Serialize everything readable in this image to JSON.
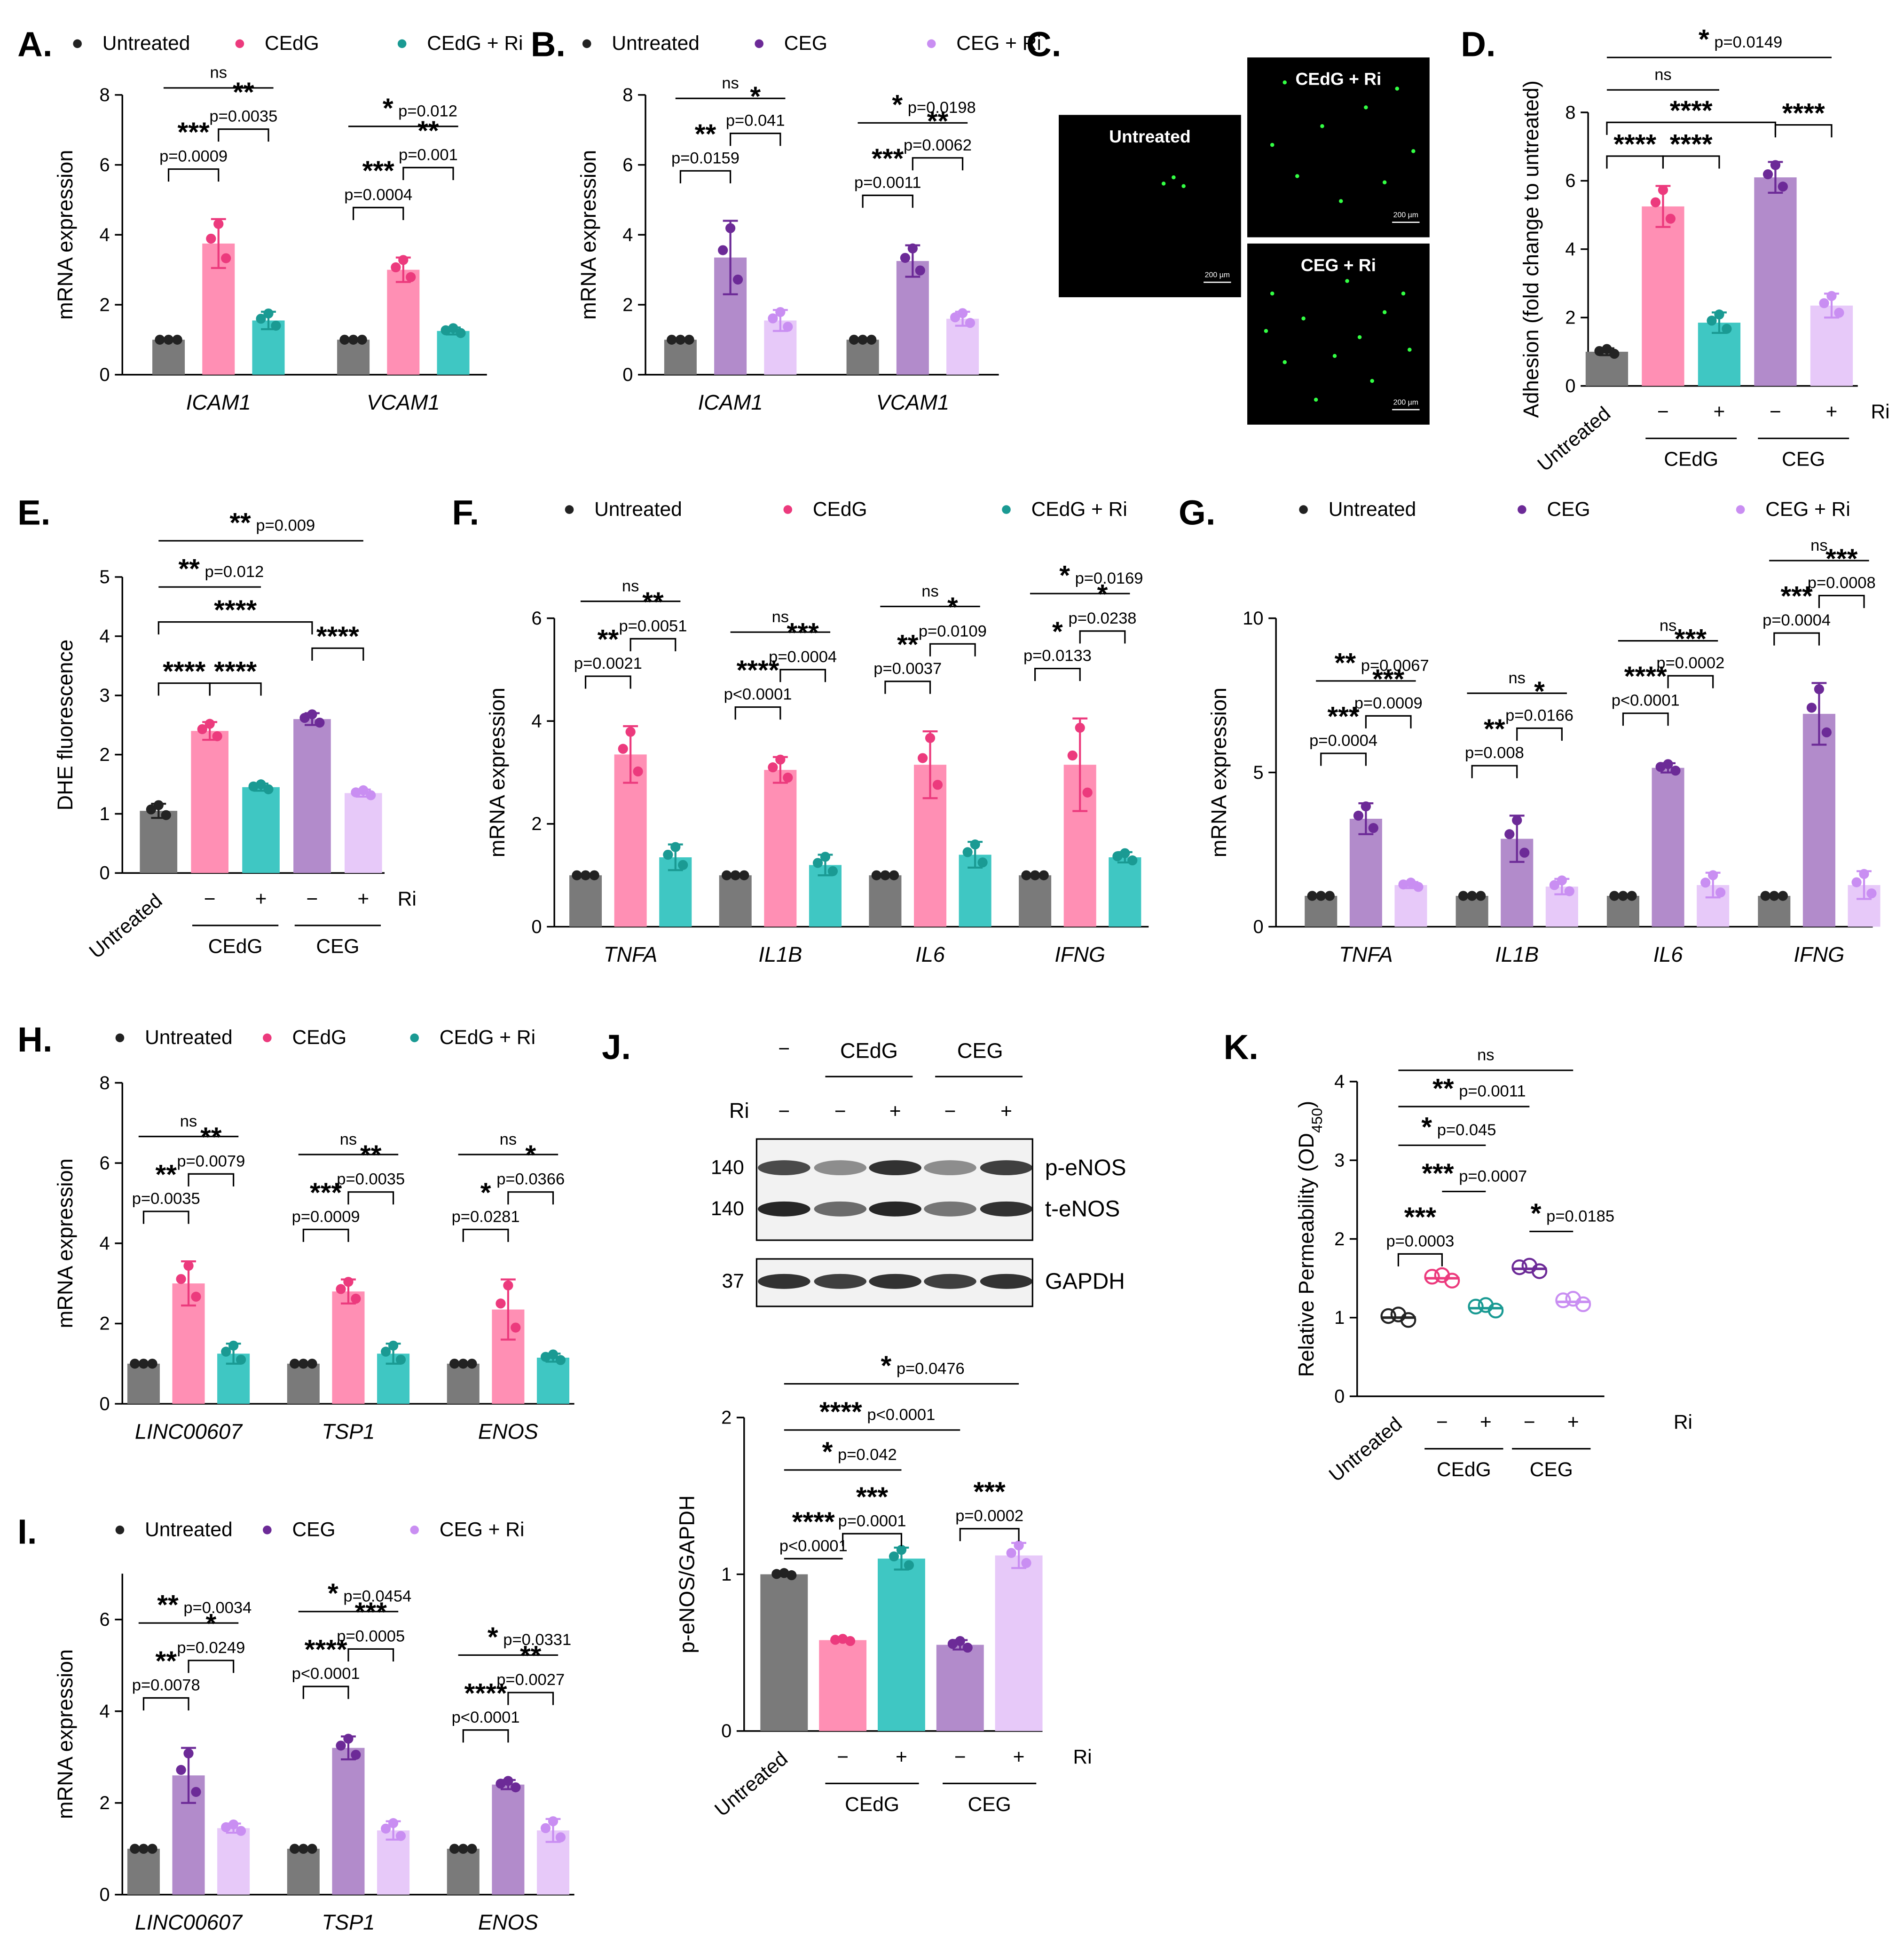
{
  "colors": {
    "untreated": "#7a7a7a",
    "cedg": "#ff8fb4",
    "cedg_dot": "#ec3a7d",
    "cedg_ri": "#3fc7c3",
    "cedg_ri_dot": "#1a9a93",
    "ceg": "#b28bcb",
    "ceg_dot": "#6c2a97",
    "ceg_ri": "#e7c9f9",
    "ceg_ri_dot": "#c98ef2",
    "untreated_dot": "#222222"
  },
  "chart_data": [
    {
      "id": "A",
      "panel_label": "A.",
      "type": "bar",
      "legend": [
        "Untreated",
        "CEdG",
        "CEdG + Ri"
      ],
      "ylabel": "mRNA expression",
      "ylim": [
        0,
        8
      ],
      "yticks": [
        "0",
        "2",
        "4",
        "6",
        "8"
      ],
      "categories": [
        "ICAM1",
        "VCAM1"
      ],
      "series": [
        {
          "name": "Untreated",
          "values": [
            1.0,
            1.0
          ],
          "err": [
            0,
            0
          ]
        },
        {
          "name": "CEdG",
          "values": [
            3.75,
            3.0
          ],
          "err": [
            0.7,
            0.35
          ]
        },
        {
          "name": "CEdG + Ri",
          "values": [
            1.55,
            1.25
          ],
          "err": [
            0.25,
            0.1
          ]
        }
      ],
      "annotations": [
        {
          "stars": "***",
          "p": "p=0.0009"
        },
        {
          "stars": "**",
          "p": "p=0.0035"
        },
        {
          "stars": "ns",
          "p": ""
        },
        {
          "stars": "***",
          "p": "p=0.0004"
        },
        {
          "stars": "**",
          "p": "p=0.001"
        },
        {
          "stars": "*",
          "p": "p=0.012"
        }
      ]
    },
    {
      "id": "B",
      "panel_label": "B.",
      "type": "bar",
      "legend": [
        "Untreated",
        "CEG",
        "CEG + Ri"
      ],
      "ylabel": "mRNA expression",
      "ylim": [
        0,
        8
      ],
      "yticks": [
        "0",
        "2",
        "4",
        "6",
        "8"
      ],
      "categories": [
        "ICAM1",
        "VCAM1"
      ],
      "series": [
        {
          "name": "Untreated",
          "values": [
            1.0,
            1.0
          ],
          "err": [
            0,
            0
          ]
        },
        {
          "name": "CEG",
          "values": [
            3.35,
            3.25
          ],
          "err": [
            1.05,
            0.45
          ]
        },
        {
          "name": "CEG + Ri",
          "values": [
            1.55,
            1.6
          ],
          "err": [
            0.3,
            0.2
          ]
        }
      ],
      "annotations": [
        {
          "stars": "**",
          "p": "p=0.0159"
        },
        {
          "stars": "*",
          "p": "p=0.041"
        },
        {
          "stars": "ns",
          "p": ""
        },
        {
          "stars": "***",
          "p": "p=0.0011"
        },
        {
          "stars": "**",
          "p": "p=0.0062"
        },
        {
          "stars": "*",
          "p": "p=0.0198"
        }
      ]
    },
    {
      "id": "C",
      "panel_label": "C.",
      "type": "image",
      "images": [
        {
          "label": "Untreated",
          "scale": ""
        },
        {
          "label": "CEdG + Ri",
          "scale": "200 µm"
        },
        {
          "label": "CEG + Ri",
          "scale": "200 µm"
        }
      ],
      "scale_first": "200 µm"
    },
    {
      "id": "D",
      "panel_label": "D.",
      "type": "bar",
      "ylabel": "Adhesion (fold change to untreated)",
      "ylim": [
        0,
        8
      ],
      "yticks": [
        "0",
        "2",
        "4",
        "6",
        "8"
      ],
      "categories": [
        "Untreated",
        "CEdG −",
        "CEdG +",
        "CEG −",
        "CEG +"
      ],
      "values": [
        1.0,
        5.25,
        1.85,
        6.1,
        2.35
      ],
      "err": [
        0.1,
        0.6,
        0.3,
        0.45,
        0.35
      ],
      "x_minus": "−",
      "x_plus": "+",
      "ri_label": "Ri",
      "group_labels": [
        "CEdG",
        "CEG"
      ],
      "untreated_label": "Untreated",
      "annotations": [
        {
          "stars": "****",
          "p": ""
        },
        {
          "stars": "****",
          "p": ""
        },
        {
          "stars": "****",
          "p": ""
        },
        {
          "stars": "****",
          "p": ""
        },
        {
          "stars": "ns",
          "p": ""
        },
        {
          "stars": "*",
          "p": "p=0.0149"
        }
      ]
    },
    {
      "id": "E",
      "panel_label": "E.",
      "type": "bar",
      "ylabel": "DHE fluorescence",
      "ylim": [
        0,
        5
      ],
      "yticks": [
        "0",
        "1",
        "2",
        "3",
        "4",
        "5"
      ],
      "categories": [
        "Untreated",
        "CEdG −",
        "CEdG +",
        "CEG −",
        "CEG +"
      ],
      "values": [
        1.05,
        2.4,
        1.45,
        2.6,
        1.35
      ],
      "err": [
        0.12,
        0.15,
        0.06,
        0.1,
        0.06
      ],
      "x_minus": "−",
      "x_plus": "+",
      "ri_label": "Ri",
      "group_labels": [
        "CEdG",
        "CEG"
      ],
      "untreated_label": "Untreated",
      "annotations": [
        {
          "stars": "****",
          "p": ""
        },
        {
          "stars": "****",
          "p": ""
        },
        {
          "stars": "****",
          "p": ""
        },
        {
          "stars": "****",
          "p": ""
        },
        {
          "stars": "**",
          "p": "p=0.012"
        },
        {
          "stars": "**",
          "p": "p=0.009"
        }
      ]
    },
    {
      "id": "F",
      "panel_label": "F.",
      "type": "bar",
      "legend": [
        "Untreated",
        "CEdG",
        "CEdG + Ri"
      ],
      "ylabel": "mRNA expression",
      "ylim": [
        0,
        6
      ],
      "yticks": [
        "0",
        "2",
        "4",
        "6"
      ],
      "categories": [
        "TNFA",
        "IL1B",
        "IL6",
        "IFNG"
      ],
      "series": [
        {
          "name": "Untreated",
          "values": [
            1.0,
            1.0,
            1.0,
            1.0
          ],
          "err": [
            0,
            0,
            0,
            0
          ]
        },
        {
          "name": "CEdG",
          "values": [
            3.35,
            3.05,
            3.15,
            3.15
          ],
          "err": [
            0.55,
            0.25,
            0.65,
            0.9
          ]
        },
        {
          "name": "CEdG + Ri",
          "values": [
            1.35,
            1.2,
            1.4,
            1.35
          ],
          "err": [
            0.25,
            0.2,
            0.25,
            0.1
          ]
        }
      ],
      "annotations": [
        {
          "stars": "**",
          "p": "p=0.0021"
        },
        {
          "stars": "**",
          "p": "p=0.0051"
        },
        {
          "stars": "ns",
          "p": ""
        },
        {
          "stars": "****",
          "p": "p<0.0001"
        },
        {
          "stars": "***",
          "p": "p=0.0004"
        },
        {
          "stars": "ns",
          "p": ""
        },
        {
          "stars": "**",
          "p": "p=0.0037"
        },
        {
          "stars": "*",
          "p": "p=0.0109"
        },
        {
          "stars": "ns",
          "p": ""
        },
        {
          "stars": "*",
          "p": "p=0.0133"
        },
        {
          "stars": "*",
          "p": "p=0.0238"
        },
        {
          "stars": "*",
          "p": "p=0.0169"
        }
      ]
    },
    {
      "id": "G",
      "panel_label": "G.",
      "type": "bar",
      "legend": [
        "Untreated",
        "CEG",
        "CEG + Ri"
      ],
      "ylabel": "mRNA expression",
      "ylim": [
        0,
        10
      ],
      "yticks": [
        "0",
        "5",
        "10"
      ],
      "categories": [
        "TNFA",
        "IL1B",
        "IL6",
        "IFNG"
      ],
      "series": [
        {
          "name": "Untreated",
          "values": [
            1.0,
            1.0,
            1.0,
            1.0
          ],
          "err": [
            0,
            0,
            0,
            0
          ]
        },
        {
          "name": "CEG",
          "values": [
            3.5,
            2.85,
            5.15,
            6.9
          ],
          "err": [
            0.5,
            0.75,
            0.15,
            1.0
          ]
        },
        {
          "name": "CEG + Ri",
          "values": [
            1.35,
            1.3,
            1.35,
            1.35
          ],
          "err": [
            0.1,
            0.25,
            0.4,
            0.45
          ]
        }
      ],
      "annotations": [
        {
          "stars": "***",
          "p": "p=0.0004"
        },
        {
          "stars": "***",
          "p": "p=0.0009"
        },
        {
          "stars": "**",
          "p": "p=0.0067"
        },
        {
          "stars": "**",
          "p": "p=0.008"
        },
        {
          "stars": "*",
          "p": "p=0.0166"
        },
        {
          "stars": "ns",
          "p": ""
        },
        {
          "stars": "****",
          "p": "p<0.0001"
        },
        {
          "stars": "***",
          "p": "p=0.0002"
        },
        {
          "stars": "ns",
          "p": ""
        },
        {
          "stars": "***",
          "p": "p=0.0004"
        },
        {
          "stars": "***",
          "p": "p=0.0008"
        },
        {
          "stars": "ns",
          "p": ""
        }
      ]
    },
    {
      "id": "H",
      "panel_label": "H.",
      "type": "bar",
      "legend": [
        "Untreated",
        "CEdG",
        "CEdG + Ri"
      ],
      "ylabel": "mRNA expression",
      "ylim": [
        0,
        8
      ],
      "yticks": [
        "0",
        "2",
        "4",
        "6",
        "8"
      ],
      "categories": [
        "LINC00607",
        "TSP1",
        "ENOS"
      ],
      "series": [
        {
          "name": "Untreated",
          "values": [
            1.0,
            1.0,
            1.0
          ],
          "err": [
            0,
            0,
            0
          ]
        },
        {
          "name": "CEdG",
          "values": [
            3.0,
            2.8,
            2.35
          ],
          "err": [
            0.55,
            0.3,
            0.75
          ]
        },
        {
          "name": "CEdG + Ri",
          "values": [
            1.25,
            1.25,
            1.15
          ],
          "err": [
            0.25,
            0.25,
            0.1
          ]
        }
      ],
      "annotations": [
        {
          "stars": "**",
          "p": "p=0.0035"
        },
        {
          "stars": "**",
          "p": "p=0.0079"
        },
        {
          "stars": "ns",
          "p": ""
        },
        {
          "stars": "***",
          "p": "p=0.0009"
        },
        {
          "stars": "**",
          "p": "p=0.0035"
        },
        {
          "stars": "ns",
          "p": ""
        },
        {
          "stars": "*",
          "p": "p=0.0281"
        },
        {
          "stars": "*",
          "p": "p=0.0366"
        },
        {
          "stars": "ns",
          "p": ""
        }
      ]
    },
    {
      "id": "I",
      "panel_label": "I.",
      "type": "bar",
      "legend": [
        "Untreated",
        "CEG",
        "CEG + Ri"
      ],
      "ylabel": "mRNA expression",
      "ylim": [
        0,
        7
      ],
      "yticks": [
        "0",
        "2",
        "4",
        "6"
      ],
      "categories": [
        "LINC00607",
        "TSP1",
        "ENOS"
      ],
      "series": [
        {
          "name": "Untreated",
          "values": [
            1.0,
            1.0,
            1.0
          ],
          "err": [
            0,
            0,
            0
          ]
        },
        {
          "name": "CEG",
          "values": [
            2.6,
            3.2,
            2.4
          ],
          "err": [
            0.6,
            0.25,
            0.1
          ]
        },
        {
          "name": "CEG + Ri",
          "values": [
            1.45,
            1.4,
            1.4
          ],
          "err": [
            0.1,
            0.2,
            0.25
          ]
        }
      ],
      "annotations": [
        {
          "stars": "**",
          "p": "p=0.0078"
        },
        {
          "stars": "*",
          "p": "p=0.0249"
        },
        {
          "stars": "**",
          "p": "p=0.0034"
        },
        {
          "stars": "****",
          "p": "p<0.0001"
        },
        {
          "stars": "***",
          "p": "p=0.0005"
        },
        {
          "stars": "*",
          "p": "p=0.0454"
        },
        {
          "stars": "****",
          "p": "p<0.0001"
        },
        {
          "stars": "**",
          "p": "p=0.0027"
        },
        {
          "stars": "*",
          "p": "p=0.0331"
        }
      ]
    },
    {
      "id": "J",
      "panel_label": "J.",
      "type": "bar",
      "blot": {
        "headers": [
          "−",
          "CEdG",
          "CEG"
        ],
        "ri_label": "Ri",
        "ri_signs": [
          "−",
          "−",
          "+",
          "−",
          "+"
        ],
        "mw": [
          "140",
          "140",
          "37"
        ],
        "bands": [
          "p-eNOS",
          "t-eNOS",
          "GAPDH"
        ]
      },
      "ylabel": "p-eNOS/GAPDH",
      "ylim": [
        0,
        2
      ],
      "yticks": [
        "0",
        "1",
        "2"
      ],
      "categories": [
        "Untreated",
        "CEdG −",
        "CEdG +",
        "CEG −",
        "CEG +"
      ],
      "values": [
        1.0,
        0.58,
        1.1,
        0.55,
        1.12
      ],
      "err": [
        0.01,
        0.01,
        0.07,
        0.03,
        0.08
      ],
      "x_minus": "−",
      "x_plus": "+",
      "ri_label": "Ri",
      "group_labels": [
        "CEdG",
        "CEG"
      ],
      "untreated_label": "Untreated",
      "annotations": [
        {
          "stars": "****",
          "p": "p<0.0001"
        },
        {
          "stars": "***",
          "p": "p=0.0001"
        },
        {
          "stars": "***",
          "p": "p=0.0002"
        },
        {
          "stars": "*",
          "p": "p=0.042"
        },
        {
          "stars": "****",
          "p": "p<0.0001"
        },
        {
          "stars": "*",
          "p": "p=0.0476"
        }
      ]
    },
    {
      "id": "K",
      "panel_label": "K.",
      "type": "scatter",
      "ylabel": "Relative Permeability (OD",
      "ylabel_sub": "450",
      "ylabel_end": ")",
      "ylim": [
        0,
        4
      ],
      "yticks": [
        "0",
        "1",
        "2",
        "3",
        "4"
      ],
      "categories": [
        "Untreated",
        "CEdG −",
        "CEdG +",
        "CEG −",
        "CEG +"
      ],
      "values": [
        1.0,
        1.5,
        1.12,
        1.62,
        1.2
      ],
      "x_minus": "−",
      "x_plus": "+",
      "ri_label": "Ri",
      "group_labels": [
        "CEdG",
        "CEG"
      ],
      "untreated_label": "Untreated",
      "annotations": [
        {
          "stars": "***",
          "p": "p=0.0003"
        },
        {
          "stars": "***",
          "p": "p=0.0007"
        },
        {
          "stars": "*",
          "p": "p=0.045"
        },
        {
          "stars": "**",
          "p": "p=0.0011"
        },
        {
          "stars": "ns",
          "p": ""
        },
        {
          "stars": "*",
          "p": "p=0.0185"
        }
      ]
    }
  ]
}
